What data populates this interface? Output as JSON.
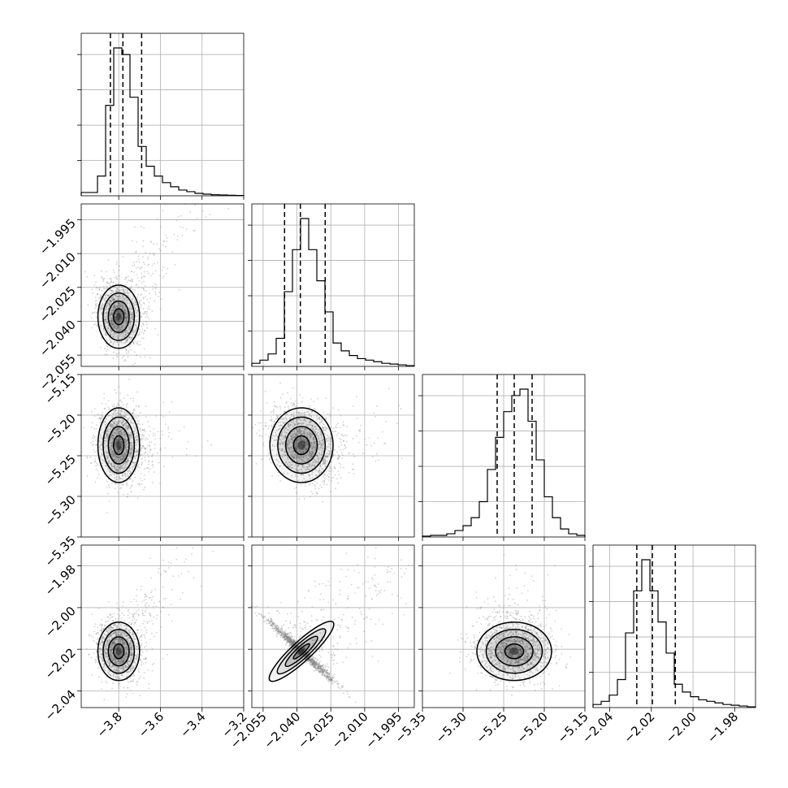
{
  "chart_data": {
    "type": "corner",
    "n_params": 4,
    "grid": true,
    "params": [
      {
        "range": [
          -3.98,
          -3.2
        ],
        "xticks": [
          {
            "v": -3.8,
            "l": "−3.8"
          },
          {
            "v": -3.6,
            "l": "−3.6"
          },
          {
            "v": -3.4,
            "l": "−3.4"
          },
          {
            "v": -3.2,
            "l": "−3.2"
          }
        ],
        "yticks": [],
        "quantiles": [
          -3.84,
          -3.78,
          -3.69
        ],
        "hist": [
          0.02,
          0.02,
          0.12,
          0.55,
          0.9,
          0.86,
          0.6,
          0.3,
          0.18,
          0.12,
          0.08,
          0.055,
          0.035,
          0.025,
          0.015,
          0.01,
          0.006,
          0.005,
          0.003,
          0.002
        ]
      },
      {
        "range": [
          -2.06,
          -1.988
        ],
        "xticks": [
          {
            "v": -2.055,
            "l": "−2.055"
          },
          {
            "v": -2.04,
            "l": "−2.040"
          },
          {
            "v": -2.025,
            "l": "−2.025"
          },
          {
            "v": -2.01,
            "l": "−2.010"
          },
          {
            "v": -1.995,
            "l": "−1.995"
          }
        ],
        "yticks": [
          {
            "v": -1.995,
            "l": "−1.995"
          },
          {
            "v": -2.01,
            "l": "−2.010"
          },
          {
            "v": -2.025,
            "l": "−2.025"
          },
          {
            "v": -2.04,
            "l": "−2.040"
          },
          {
            "v": -2.055,
            "l": "−2.055"
          }
        ],
        "quantiles": [
          -2.0455,
          -2.0385,
          -2.0275
        ],
        "hist": [
          0.02,
          0.04,
          0.08,
          0.18,
          0.48,
          0.75,
          0.95,
          0.75,
          0.55,
          0.35,
          0.15,
          0.1,
          0.07,
          0.05,
          0.04,
          0.03,
          0.02,
          0.015,
          0.01,
          0.005
        ]
      },
      {
        "range": [
          -5.35,
          -5.15
        ],
        "xticks": [
          {
            "v": -5.35,
            "l": "−5.35"
          },
          {
            "v": -5.3,
            "l": "−5.30"
          },
          {
            "v": -5.25,
            "l": "−5.25"
          },
          {
            "v": -5.2,
            "l": "−5.20"
          },
          {
            "v": -5.15,
            "l": "−5.15"
          }
        ],
        "yticks": [
          {
            "v": -5.15,
            "l": "−5.15"
          },
          {
            "v": -5.2,
            "l": "−5.20"
          },
          {
            "v": -5.25,
            "l": "−5.25"
          },
          {
            "v": -5.3,
            "l": "−5.30"
          },
          {
            "v": -5.35,
            "l": "−5.35"
          }
        ],
        "quantiles": [
          -5.258,
          -5.237,
          -5.215
        ],
        "hist": [
          0.005,
          0.01,
          0.01,
          0.02,
          0.04,
          0.07,
          0.12,
          0.22,
          0.42,
          0.62,
          0.78,
          0.88,
          0.92,
          0.72,
          0.48,
          0.25,
          0.12,
          0.05,
          0.02,
          0.01
        ]
      },
      {
        "range": [
          -2.048,
          -1.97
        ],
        "xticks": [
          {
            "v": -2.04,
            "l": "−2.04"
          },
          {
            "v": -2.02,
            "l": "−2.02"
          },
          {
            "v": -2.0,
            "l": "−2.00"
          },
          {
            "v": -1.98,
            "l": "−1.98"
          }
        ],
        "yticks": [
          {
            "v": -1.98,
            "l": "−1.98"
          },
          {
            "v": -2.0,
            "l": "−2.00"
          },
          {
            "v": -2.02,
            "l": "−2.02"
          },
          {
            "v": -2.04,
            "l": "−2.04"
          }
        ],
        "quantiles": [
          -2.027,
          -2.0195,
          -2.0085
        ],
        "hist": [
          0.02,
          0.04,
          0.08,
          0.18,
          0.48,
          0.75,
          0.95,
          0.75,
          0.55,
          0.35,
          0.15,
          0.1,
          0.07,
          0.05,
          0.04,
          0.03,
          0.02,
          0.015,
          0.01,
          0.005
        ]
      }
    ],
    "joint": [
      {
        "row": 1,
        "col": 0,
        "mean": [
          -3.8,
          -2.038
        ],
        "sd": [
          0.05,
          0.007
        ],
        "rho": 0.25,
        "tail": [
          0.18,
          0.025
        ]
      },
      {
        "row": 2,
        "col": 0,
        "mean": [
          -3.8,
          -5.237
        ],
        "sd": [
          0.05,
          0.023
        ],
        "rho": 0.0,
        "tail": [
          0.12,
          0.0
        ]
      },
      {
        "row": 2,
        "col": 1,
        "mean": [
          -2.038,
          -5.237
        ],
        "sd": [
          0.007,
          0.023
        ],
        "rho": 0.3,
        "tail": [
          0.018,
          0.01
        ]
      },
      {
        "row": 3,
        "col": 0,
        "mean": [
          -3.8,
          -2.021
        ],
        "sd": [
          0.05,
          0.007
        ],
        "rho": 0.25,
        "tail": [
          0.18,
          0.025
        ]
      },
      {
        "row": 3,
        "col": 1,
        "mean": [
          -2.038,
          -2.021
        ],
        "sd": [
          0.007,
          0.007
        ],
        "rho": 0.985,
        "tail": [
          0.03,
          0.03
        ]
      },
      {
        "row": 3,
        "col": 2,
        "mean": [
          -5.237,
          -2.021
        ],
        "sd": [
          0.023,
          0.007
        ],
        "rho": 0.0,
        "tail": [
          0.0,
          0.015
        ]
      }
    ],
    "colors": {
      "line": "#000000",
      "grid": "#b0b0b0",
      "points": "#7f7f7f"
    }
  }
}
